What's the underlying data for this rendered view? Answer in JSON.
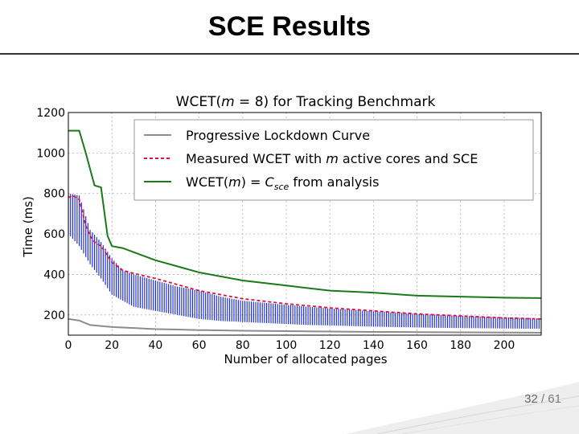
{
  "slide": {
    "title": "SCE Results",
    "page_current": "32",
    "page_total": "/ 61"
  },
  "chart_data": {
    "type": "line",
    "title": "WCET(m = 8) for Tracking Benchmark",
    "xlabel": "Number of allocated pages",
    "ylabel": "Time (ms)",
    "xlim": [
      0,
      217
    ],
    "ylim": [
      100,
      1200
    ],
    "xticks": [
      0,
      20,
      40,
      60,
      80,
      100,
      120,
      140,
      160,
      180,
      200
    ],
    "yticks": [
      200,
      400,
      600,
      800,
      1000,
      1200
    ],
    "grid": true,
    "legend_position": "top-right",
    "series": [
      {
        "name": "Progressive Lockdown Curve",
        "style": "solid",
        "color": "#8c8c8c",
        "x": [
          0,
          5,
          10,
          15,
          20,
          30,
          40,
          50,
          60,
          80,
          100,
          120,
          140,
          160,
          180,
          200,
          217
        ],
        "y": [
          180,
          172,
          150,
          145,
          140,
          135,
          130,
          128,
          125,
          122,
          120,
          118,
          116,
          115,
          114,
          113,
          112
        ]
      },
      {
        "name": "Measured WCET with m active cores and SCE",
        "style": "dashed",
        "color": "#e0103a",
        "x": [
          0,
          2,
          5,
          8,
          10,
          12,
          15,
          20,
          25,
          30,
          40,
          50,
          60,
          70,
          80,
          100,
          120,
          140,
          160,
          180,
          200,
          217
        ],
        "y": [
          780,
          790,
          770,
          640,
          590,
          560,
          540,
          460,
          420,
          405,
          380,
          350,
          320,
          300,
          280,
          255,
          235,
          220,
          205,
          195,
          185,
          180
        ]
      },
      {
        "name": "WCET(m) = C_sce from analysis",
        "style": "solid",
        "color": "#1a7a1a",
        "x": [
          0,
          5,
          8,
          12,
          15,
          18,
          20,
          25,
          30,
          40,
          50,
          60,
          80,
          100,
          120,
          140,
          160,
          180,
          200,
          217
        ],
        "y": [
          1110,
          1110,
          1000,
          840,
          830,
          590,
          540,
          530,
          510,
          470,
          440,
          410,
          370,
          345,
          320,
          310,
          295,
          290,
          285,
          283
        ]
      }
    ],
    "measured_range_band": {
      "color": "#1f2fd6",
      "x": [
        0,
        5,
        10,
        15,
        20,
        25,
        30,
        40,
        50,
        60,
        70,
        80,
        90,
        100,
        110,
        120,
        130,
        140,
        150,
        160,
        170,
        180,
        190,
        200,
        210,
        217
      ],
      "low": [
        600,
        540,
        450,
        380,
        300,
        270,
        240,
        220,
        200,
        180,
        170,
        165,
        160,
        155,
        150,
        148,
        145,
        142,
        140,
        138,
        136,
        135,
        134,
        133,
        132,
        132
      ],
      "high": [
        800,
        790,
        620,
        560,
        480,
        420,
        400,
        370,
        340,
        320,
        290,
        270,
        260,
        250,
        240,
        232,
        225,
        218,
        212,
        205,
        200,
        195,
        192,
        188,
        185,
        182
      ]
    }
  }
}
